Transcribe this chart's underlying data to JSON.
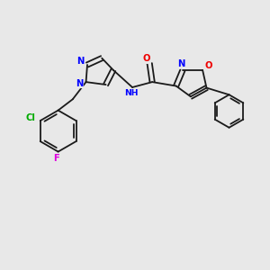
{
  "bg_color": "#e8e8e8",
  "bond_color": "#1a1a1a",
  "N_color": "#0000ff",
  "O_color": "#ee0000",
  "Cl_color": "#00aa00",
  "F_color": "#dd00dd",
  "lw": 1.3,
  "fs": 7.2,
  "xlim": [
    0,
    10
  ],
  "ylim": [
    0,
    10
  ]
}
